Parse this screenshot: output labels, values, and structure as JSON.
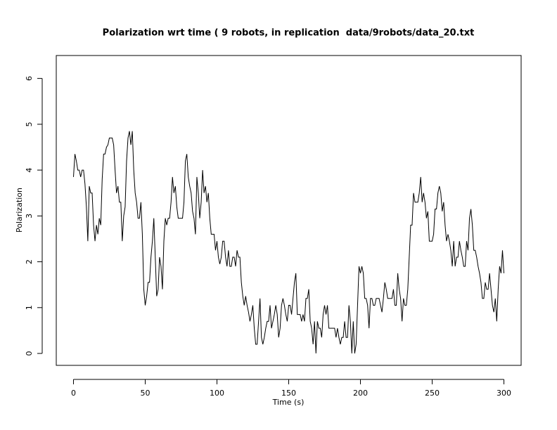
{
  "chart_data": {
    "type": "line",
    "title": "Polarization wrt time ( 9 robots, in replication  data/9robots/data_20.txt",
    "x_label": "Time (s)",
    "y_label": "Polarization",
    "x": [
      0,
      1,
      2,
      3,
      4,
      5,
      6,
      7,
      8,
      9,
      10,
      11,
      12,
      13,
      14,
      15,
      16,
      17,
      18,
      19,
      20,
      21,
      22,
      23,
      24,
      25,
      26,
      27,
      28,
      29,
      30,
      31,
      32,
      33,
      34,
      35,
      36,
      37,
      38,
      39,
      40,
      41,
      42,
      43,
      44,
      45,
      46,
      47,
      48,
      49,
      50,
      51,
      52,
      53,
      54,
      55,
      56,
      57,
      58,
      59,
      60,
      61,
      62,
      63,
      64,
      65,
      66,
      67,
      68,
      69,
      70,
      71,
      72,
      73,
      74,
      75,
      76,
      77,
      78,
      79,
      80,
      81,
      82,
      83,
      84,
      85,
      86,
      87,
      88,
      89,
      90,
      91,
      92,
      93,
      94,
      95,
      96,
      97,
      98,
      99,
      100,
      101,
      102,
      103,
      104,
      105,
      106,
      107,
      108,
      109,
      110,
      111,
      112,
      113,
      114,
      115,
      116,
      117,
      118,
      119,
      120,
      121,
      122,
      123,
      124,
      125,
      126,
      127,
      128,
      129,
      130,
      131,
      132,
      133,
      134,
      135,
      136,
      137,
      138,
      139,
      140,
      141,
      142,
      143,
      144,
      145,
      146,
      147,
      148,
      149,
      150,
      151,
      152,
      153,
      154,
      155,
      156,
      157,
      158,
      159,
      160,
      161,
      162,
      163,
      164,
      165,
      166,
      167,
      168,
      169,
      170,
      171,
      172,
      173,
      174,
      175,
      176,
      177,
      178,
      179,
      180,
      181,
      182,
      183,
      184,
      185,
      186,
      187,
      188,
      189,
      190,
      191,
      192,
      193,
      194,
      195,
      196,
      197,
      198,
      199,
      200,
      201,
      202,
      203,
      204,
      205,
      206,
      207,
      208,
      209,
      210,
      211,
      212,
      213,
      214,
      215,
      216,
      217,
      218,
      219,
      220,
      221,
      222,
      223,
      224,
      225,
      226,
      227,
      228,
      229,
      230,
      231,
      232,
      233,
      234,
      235,
      236,
      237,
      238,
      239,
      240,
      241,
      242,
      243,
      244,
      245,
      246,
      247,
      248,
      249,
      250,
      251,
      252,
      253,
      254,
      255,
      256,
      257,
      258,
      259,
      260,
      261,
      262,
      263,
      264,
      265,
      266,
      267,
      268,
      269,
      270,
      271,
      272,
      273,
      274,
      275,
      276,
      277,
      278,
      279,
      280,
      281,
      282,
      283,
      284,
      285,
      286,
      287,
      288,
      289,
      290,
      291,
      292,
      293,
      294,
      295,
      296,
      297,
      298,
      299,
      300
    ],
    "series": [
      {
        "name": "Polarization",
        "color": "#000000",
        "values": [
          3.85,
          4.35,
          4.2,
          4.0,
          4.0,
          3.85,
          4.0,
          4.0,
          3.7,
          3.2,
          2.45,
          3.65,
          3.5,
          3.5,
          2.8,
          2.45,
          2.8,
          2.6,
          2.95,
          2.8,
          3.8,
          4.35,
          4.35,
          4.5,
          4.55,
          4.7,
          4.7,
          4.7,
          4.55,
          4.0,
          3.5,
          3.65,
          3.3,
          3.3,
          2.45,
          3.0,
          3.2,
          4.2,
          4.7,
          4.85,
          4.55,
          4.85,
          4.0,
          3.5,
          3.3,
          2.95,
          2.95,
          3.3,
          2.6,
          1.4,
          1.05,
          1.25,
          1.55,
          1.55,
          2.1,
          2.45,
          2.95,
          2.1,
          1.25,
          1.4,
          2.1,
          1.9,
          1.4,
          2.45,
          2.95,
          2.8,
          2.95,
          2.95,
          3.3,
          3.85,
          3.5,
          3.65,
          3.2,
          2.95,
          2.95,
          2.95,
          2.95,
          3.3,
          4.2,
          4.35,
          3.85,
          3.65,
          3.5,
          3.1,
          2.95,
          2.6,
          3.85,
          3.5,
          2.95,
          3.3,
          4.0,
          3.5,
          3.65,
          3.3,
          3.5,
          2.95,
          2.6,
          2.6,
          2.6,
          2.25,
          2.45,
          2.1,
          1.95,
          2.1,
          2.45,
          2.45,
          2.1,
          1.9,
          2.25,
          1.9,
          1.9,
          2.1,
          2.1,
          1.9,
          2.25,
          2.1,
          2.1,
          1.55,
          1.25,
          1.05,
          1.25,
          1.05,
          0.9,
          0.7,
          0.85,
          1.05,
          0.55,
          0.2,
          0.2,
          0.7,
          1.2,
          0.35,
          0.2,
          0.35,
          0.55,
          0.7,
          0.7,
          1.05,
          0.55,
          0.7,
          0.85,
          1.05,
          0.85,
          0.35,
          0.55,
          1.05,
          1.2,
          1.05,
          0.85,
          0.7,
          1.05,
          1.05,
          0.85,
          1.2,
          1.55,
          1.75,
          0.85,
          0.85,
          0.85,
          0.7,
          0.85,
          0.7,
          1.2,
          1.2,
          1.4,
          0.7,
          0.55,
          0.2,
          0.7,
          0.0,
          0.7,
          0.55,
          0.55,
          0.35,
          0.85,
          1.05,
          0.85,
          1.05,
          0.55,
          0.55,
          0.55,
          0.55,
          0.55,
          0.35,
          0.55,
          0.35,
          0.2,
          0.35,
          0.35,
          0.7,
          0.35,
          0.35,
          1.05,
          0.7,
          0.0,
          0.7,
          0.0,
          0.2,
          1.05,
          1.9,
          1.75,
          1.9,
          1.75,
          1.2,
          1.2,
          1.05,
          0.55,
          1.2,
          1.2,
          1.05,
          1.05,
          1.2,
          1.2,
          1.2,
          1.05,
          0.9,
          1.2,
          1.55,
          1.4,
          1.2,
          1.2,
          1.2,
          1.2,
          1.4,
          1.05,
          1.05,
          1.75,
          1.4,
          1.2,
          0.7,
          1.2,
          1.05,
          1.05,
          1.4,
          2.1,
          2.8,
          2.8,
          3.5,
          3.3,
          3.3,
          3.3,
          3.5,
          3.85,
          3.3,
          3.5,
          3.3,
          2.95,
          3.1,
          2.45,
          2.45,
          2.45,
          2.6,
          3.15,
          3.15,
          3.5,
          3.65,
          3.5,
          3.1,
          3.3,
          2.8,
          2.45,
          2.6,
          2.45,
          2.25,
          1.9,
          2.45,
          1.9,
          2.1,
          2.1,
          2.45,
          2.25,
          2.1,
          1.9,
          1.9,
          2.45,
          2.25,
          2.95,
          3.15,
          2.8,
          2.25,
          2.25,
          2.1,
          1.9,
          1.75,
          1.55,
          1.2,
          1.2,
          1.55,
          1.4,
          1.4,
          1.75,
          1.4,
          1.05,
          0.9,
          1.2,
          0.7,
          1.4,
          1.9,
          1.75,
          2.25,
          1.75
        ]
      }
    ],
    "xlim": [
      -12,
      312
    ],
    "ylim": [
      -0.26,
      6.5
    ],
    "xticks": [
      0,
      50,
      100,
      150,
      200,
      250,
      300
    ],
    "yticks": [
      0,
      1,
      2,
      3,
      4,
      5,
      6
    ]
  }
}
